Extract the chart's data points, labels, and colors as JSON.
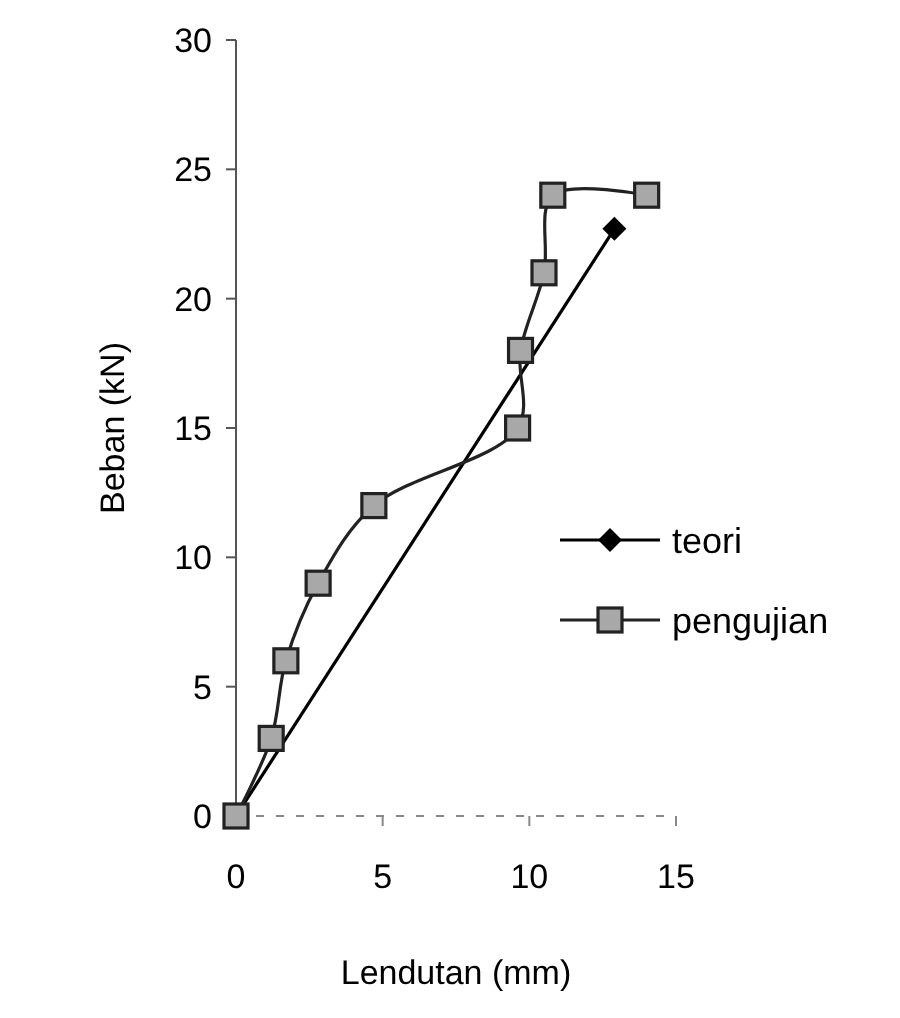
{
  "chart_data": {
    "type": "line",
    "xlabel": "Lendutan (mm)",
    "ylabel": "Beban (kN)",
    "xlim": [
      0,
      15
    ],
    "xticks": [
      0,
      5,
      10,
      15
    ],
    "ylim": [
      0,
      30
    ],
    "yticks": [
      0,
      5,
      10,
      15,
      20,
      25,
      30
    ],
    "grid": false,
    "legend": "right",
    "series": [
      {
        "name": "teori",
        "color": "#000000",
        "marker": "diamond",
        "x": [
          0,
          12.9
        ],
        "values": [
          0,
          22.7
        ]
      },
      {
        "name": "pengujian",
        "color": "#222222",
        "marker": "square",
        "x": [
          0,
          1.2,
          1.7,
          2.8,
          4.7,
          9.6,
          9.7,
          10.5,
          10.8,
          14
        ],
        "values": [
          0,
          3,
          6,
          9,
          12,
          15,
          18,
          21,
          24,
          24
        ]
      }
    ]
  }
}
